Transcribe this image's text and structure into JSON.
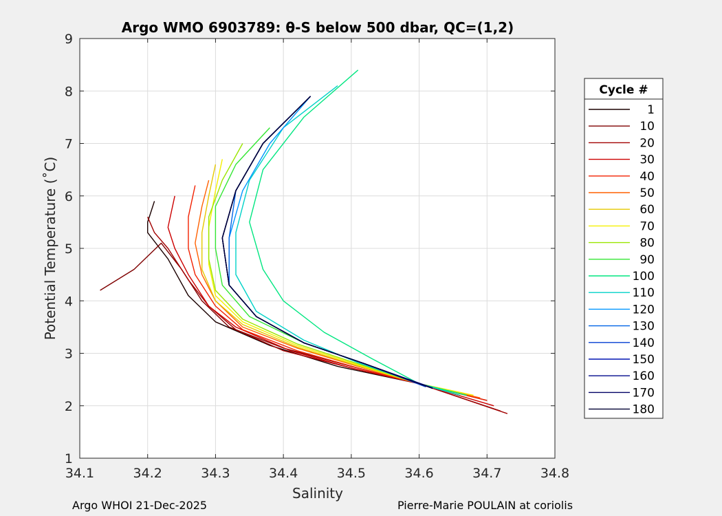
{
  "chart_data": {
    "type": "line",
    "title": "Argo WMO 6903789: θ-S below 500 dbar,  QC=(1,2)",
    "xlabel": "Salinity",
    "ylabel": "Potential Temperature (˚C)",
    "xlim": [
      34.1,
      34.8
    ],
    "ylim": [
      1,
      9
    ],
    "xticks": [
      "34.1",
      "34.2",
      "34.3",
      "34.4",
      "34.5",
      "34.6",
      "34.7",
      "34.8"
    ],
    "yticks": [
      "1",
      "2",
      "3",
      "4",
      "5",
      "6",
      "7",
      "8",
      "9"
    ],
    "grid": true,
    "legend_title": "Cycle #",
    "legend_position": "right",
    "series": [
      {
        "name": "1",
        "color": "#1a0000",
        "x": [
          34.21,
          34.2,
          34.2,
          34.23,
          34.26,
          34.3,
          34.38,
          34.48,
          34.6,
          34.7
        ],
        "y": [
          5.9,
          5.5,
          5.3,
          4.8,
          4.1,
          3.6,
          3.15,
          2.75,
          2.42,
          2.1
        ]
      },
      {
        "name": "10",
        "color": "#7f0000",
        "x": [
          34.13,
          34.18,
          34.22,
          34.25,
          34.28,
          34.32,
          34.4,
          34.5,
          34.6,
          34.72
        ],
        "y": [
          4.2,
          4.6,
          5.1,
          4.6,
          4.0,
          3.5,
          3.1,
          2.75,
          2.42,
          1.9
        ]
      },
      {
        "name": "20",
        "color": "#a20000",
        "x": [
          34.2,
          34.21,
          34.23,
          34.26,
          34.29,
          34.33,
          34.4,
          34.5,
          34.6,
          34.73
        ],
        "y": [
          5.6,
          5.3,
          5.0,
          4.4,
          3.9,
          3.45,
          3.05,
          2.72,
          2.42,
          1.85
        ]
      },
      {
        "name": "30",
        "color": "#cc0000",
        "x": [
          34.24,
          34.23,
          34.24,
          34.26,
          34.29,
          34.33,
          34.41,
          34.5,
          34.6,
          34.71
        ],
        "y": [
          6.0,
          5.4,
          5.0,
          4.5,
          3.9,
          3.5,
          3.05,
          2.72,
          2.42,
          2.0
        ]
      },
      {
        "name": "40",
        "color": "#f22000",
        "x": [
          34.27,
          34.26,
          34.26,
          34.27,
          34.3,
          34.34,
          34.42,
          34.51,
          34.6,
          34.7
        ],
        "y": [
          6.2,
          5.6,
          5.0,
          4.5,
          3.9,
          3.45,
          3.05,
          2.72,
          2.42,
          2.1
        ]
      },
      {
        "name": "50",
        "color": "#ff6000",
        "x": [
          34.29,
          34.28,
          34.27,
          34.28,
          34.3,
          34.34,
          34.42,
          34.51,
          34.6,
          34.69
        ],
        "y": [
          6.3,
          5.8,
          5.1,
          4.5,
          4.0,
          3.5,
          3.1,
          2.75,
          2.42,
          2.15
        ]
      },
      {
        "name": "60",
        "color": "#e6c800",
        "x": [
          34.3,
          34.29,
          34.28,
          34.28,
          34.3,
          34.34,
          34.42,
          34.51,
          34.6,
          34.68
        ],
        "y": [
          6.6,
          6.0,
          5.3,
          4.6,
          4.0,
          3.55,
          3.12,
          2.76,
          2.42,
          2.2
        ]
      },
      {
        "name": "70",
        "color": "#f5f000",
        "x": [
          34.31,
          34.3,
          34.29,
          34.29,
          34.3,
          34.34,
          34.42,
          34.51,
          34.6,
          34.68
        ],
        "y": [
          6.7,
          6.1,
          5.4,
          4.7,
          4.1,
          3.6,
          3.15,
          2.78,
          2.42,
          2.2
        ]
      },
      {
        "name": "80",
        "color": "#9ae600",
        "x": [
          34.34,
          34.31,
          34.29,
          34.29,
          34.3,
          34.34,
          34.42,
          34.51,
          34.6,
          34.67
        ],
        "y": [
          7.0,
          6.3,
          5.6,
          4.8,
          4.2,
          3.65,
          3.18,
          2.8,
          2.42,
          2.2
        ]
      },
      {
        "name": "90",
        "color": "#33e633",
        "x": [
          34.38,
          34.33,
          34.3,
          34.3,
          34.31,
          34.35,
          34.43,
          34.52,
          34.6,
          34.67
        ],
        "y": [
          7.3,
          6.6,
          5.8,
          5.0,
          4.3,
          3.7,
          3.2,
          2.8,
          2.42,
          2.2
        ]
      },
      {
        "name": "100",
        "color": "#00e680",
        "x": [
          34.51,
          34.43,
          34.37,
          34.35,
          34.37,
          34.4,
          34.46,
          34.53,
          34.6,
          34.67
        ],
        "y": [
          8.4,
          7.5,
          6.5,
          5.5,
          4.6,
          4.0,
          3.4,
          2.9,
          2.42,
          2.2
        ]
      },
      {
        "name": "110",
        "color": "#00d2c8",
        "x": [
          34.48,
          34.4,
          34.35,
          34.33,
          34.33,
          34.36,
          34.43,
          34.51,
          34.6,
          34.66
        ],
        "y": [
          8.1,
          7.3,
          6.3,
          5.3,
          4.5,
          3.8,
          3.25,
          2.82,
          2.42,
          2.2
        ]
      },
      {
        "name": "120",
        "color": "#0096ff",
        "x": [
          34.44,
          34.38,
          34.34,
          34.32,
          34.32,
          34.36,
          34.43,
          34.52,
          34.6
        ],
        "y": [
          7.9,
          7.0,
          6.1,
          5.2,
          4.3,
          3.7,
          3.2,
          2.8,
          2.42
        ]
      },
      {
        "name": "130",
        "color": "#0064e6",
        "x": [
          34.44,
          34.37,
          34.33,
          34.32,
          34.32,
          34.36,
          34.43,
          34.52,
          34.61
        ],
        "y": [
          7.9,
          7.0,
          6.1,
          5.2,
          4.3,
          3.7,
          3.2,
          2.8,
          2.38
        ]
      },
      {
        "name": "140",
        "color": "#003cd2",
        "x": [
          34.44,
          34.37,
          34.33,
          34.31,
          34.32,
          34.36,
          34.43,
          34.52,
          34.61
        ],
        "y": [
          7.9,
          7.0,
          6.1,
          5.2,
          4.3,
          3.7,
          3.2,
          2.8,
          2.36
        ]
      },
      {
        "name": "150",
        "color": "#0014b4",
        "x": [
          34.44,
          34.37,
          34.33,
          34.31,
          34.32,
          34.36,
          34.43,
          34.52,
          34.62
        ],
        "y": [
          7.9,
          7.0,
          6.1,
          5.2,
          4.3,
          3.7,
          3.2,
          2.8,
          2.34
        ]
      },
      {
        "name": "160",
        "color": "#000a8c",
        "x": [
          34.44,
          34.37,
          34.33,
          34.31,
          34.32,
          34.36,
          34.43,
          34.52,
          34.62
        ],
        "y": [
          7.9,
          7.0,
          6.1,
          5.2,
          4.3,
          3.7,
          3.2,
          2.8,
          2.33
        ]
      },
      {
        "name": "170",
        "color": "#000064",
        "x": [
          34.44,
          34.37,
          34.33,
          34.31,
          34.32,
          34.36,
          34.43,
          34.52,
          34.62
        ],
        "y": [
          7.9,
          7.0,
          6.1,
          5.2,
          4.3,
          3.7,
          3.2,
          2.8,
          2.33
        ]
      },
      {
        "name": "180",
        "color": "#000032",
        "x": [
          34.44,
          34.37,
          34.33,
          34.31,
          34.32,
          34.36,
          34.43,
          34.52,
          34.62
        ],
        "y": [
          7.9,
          7.0,
          6.1,
          5.2,
          4.3,
          3.7,
          3.2,
          2.8,
          2.33
        ]
      }
    ]
  },
  "footer": {
    "left": "Argo WHOI 21-Dec-2025",
    "right": "Pierre-Marie POULAIN at coriolis"
  }
}
